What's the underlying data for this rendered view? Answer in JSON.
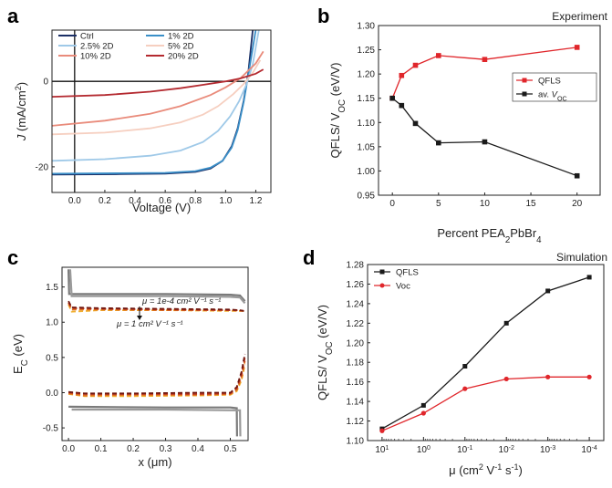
{
  "panels": {
    "a": {
      "label": "a"
    },
    "b": {
      "label": "b",
      "corner": "Experiment"
    },
    "c": {
      "label": "c",
      "annot_top": "μ = 1e-4 cm² V⁻¹ s⁻¹",
      "annot_bottom": "μ = 1 cm² V⁻¹ s⁻¹"
    },
    "d": {
      "label": "d",
      "corner": "Simulation"
    }
  },
  "chart_data": [
    {
      "panel": "a",
      "type": "line",
      "xlabel": "Voltage (V)",
      "ylabel": "J (mA/cm²)",
      "xlim": [
        -0.15,
        1.3
      ],
      "ylim": [
        -26,
        12
      ],
      "xticks": [
        "0.0",
        "0.2",
        "0.4",
        "0.6",
        "0.8",
        "1.0",
        "1.2"
      ],
      "yticks": [
        "0",
        "-20"
      ],
      "legend_position": "top-left",
      "series": [
        {
          "name": "Ctrl",
          "color": "#1b2f66",
          "x": [
            -0.15,
            0.3,
            0.6,
            0.8,
            0.9,
            0.98,
            1.04,
            1.08,
            1.12,
            1.15,
            1.18
          ],
          "y": [
            -21.8,
            -21.7,
            -21.6,
            -21.2,
            -20.4,
            -18.6,
            -15.2,
            -11.0,
            -4.5,
            2.0,
            12.0
          ]
        },
        {
          "name": "1% 2D",
          "color": "#3a8fc8",
          "x": [
            -0.15,
            0.3,
            0.6,
            0.8,
            0.9,
            0.98,
            1.04,
            1.08,
            1.12,
            1.15,
            1.2
          ],
          "y": [
            -21.6,
            -21.5,
            -21.4,
            -21.0,
            -20.2,
            -18.6,
            -15.5,
            -11.4,
            -4.8,
            1.5,
            12.0
          ]
        },
        {
          "name": "2.5% 2D",
          "color": "#9fc9e8",
          "x": [
            -0.15,
            0.2,
            0.5,
            0.7,
            0.85,
            0.95,
            1.03,
            1.09,
            1.14,
            1.18,
            1.22
          ],
          "y": [
            -18.6,
            -18.2,
            -17.4,
            -16.2,
            -14.2,
            -11.6,
            -8.2,
            -4.6,
            -0.6,
            4.0,
            12.0
          ]
        },
        {
          "name": "5% 2D",
          "color": "#f6cfc0",
          "x": [
            -0.15,
            0.2,
            0.5,
            0.7,
            0.85,
            0.95,
            1.05,
            1.12,
            1.18,
            1.23
          ],
          "y": [
            -12.4,
            -12.0,
            -11.0,
            -9.6,
            -7.8,
            -5.8,
            -3.0,
            -0.6,
            2.0,
            5.0
          ]
        },
        {
          "name": "10% 2D",
          "color": "#e98b7b",
          "x": [
            -0.15,
            0.2,
            0.5,
            0.7,
            0.9,
            1.0,
            1.1,
            1.2,
            1.25
          ],
          "y": [
            -10.4,
            -9.2,
            -7.6,
            -5.8,
            -3.2,
            -1.4,
            0.8,
            4.2,
            7.0
          ]
        },
        {
          "name": "20% 2D",
          "color": "#b42a30",
          "x": [
            -0.15,
            0.2,
            0.5,
            0.7,
            0.85,
            1.0,
            1.1,
            1.2,
            1.25
          ],
          "y": [
            -3.6,
            -3.2,
            -2.4,
            -1.6,
            -0.8,
            0.0,
            0.7,
            1.8,
            2.8
          ]
        }
      ]
    },
    {
      "panel": "b",
      "type": "line",
      "xlabel": "Percent PEA₂PbBr₄",
      "ylabel": "QFLS/ V_OC (eV/V)",
      "xlim": [
        -1.5,
        22.5
      ],
      "ylim": [
        0.95,
        1.3
      ],
      "xticks": [
        0,
        5,
        10,
        15,
        20
      ],
      "yticks": [
        "0.95",
        "1.00",
        "1.05",
        "1.10",
        "1.15",
        "1.20",
        "1.25",
        "1.30"
      ],
      "legend_position": "right",
      "series": [
        {
          "name": "QFLS",
          "color": "#e0262b",
          "x": [
            0,
            1,
            2.5,
            5,
            10,
            20
          ],
          "y": [
            1.15,
            1.197,
            1.218,
            1.238,
            1.23,
            1.255
          ]
        },
        {
          "name": "av. V_OC",
          "color": "#1a1a1a",
          "x": [
            0,
            1,
            2.5,
            5,
            10,
            20
          ],
          "y": [
            1.15,
            1.135,
            1.098,
            1.058,
            1.06,
            0.99
          ]
        }
      ]
    },
    {
      "panel": "c",
      "type": "line",
      "xlabel": "x (μm)",
      "ylabel": "E_C (eV)",
      "xlim": [
        -0.02,
        0.555
      ],
      "ylim": [
        -0.68,
        1.78
      ],
      "xticks": [
        "0.0",
        "0.1",
        "0.2",
        "0.3",
        "0.4",
        "0.5"
      ],
      "yticks": [
        "-0.5",
        "0.0",
        "0.5",
        "1.0",
        "1.5"
      ],
      "series": [
        {
          "name": "upper band edge",
          "color": "#7a7a7a",
          "x": [
            0.0,
            0.002,
            0.01,
            0.3,
            0.5,
            0.53,
            0.545
          ],
          "y": [
            1.75,
            1.4,
            1.4,
            1.4,
            1.39,
            1.38,
            1.3
          ]
        },
        {
          "name": "upper band edge 2",
          "color": "#9a9a9a",
          "x": [
            0.005,
            0.01,
            0.3,
            0.5,
            0.53,
            0.545
          ],
          "y": [
            1.75,
            1.37,
            1.37,
            1.36,
            1.35,
            1.27
          ]
        },
        {
          "name": "lower band edge",
          "color": "#7a7a7a",
          "x": [
            0.0,
            0.3,
            0.5,
            0.52,
            0.521
          ],
          "y": [
            -0.2,
            -0.21,
            -0.21,
            -0.22,
            -0.62
          ]
        },
        {
          "name": "lower band edge 2",
          "color": "#9a9a9a",
          "x": [
            0.01,
            0.3,
            0.51,
            0.53,
            0.531
          ],
          "y": [
            -0.24,
            -0.24,
            -0.25,
            -0.25,
            -0.62
          ]
        },
        {
          "name": "E_C mu 1e-4",
          "color": "#f0b030",
          "x": [
            0.0,
            0.01,
            0.1,
            0.3,
            0.5,
            0.53,
            0.542
          ],
          "y": [
            1.25,
            1.15,
            1.17,
            1.17,
            1.16,
            1.16,
            1.16
          ]
        },
        {
          "name": "E_C mu 1e-3",
          "color": "#e07020",
          "x": [
            0.0,
            0.01,
            0.1,
            0.3,
            0.5,
            0.53,
            0.542
          ],
          "y": [
            1.27,
            1.18,
            1.18,
            1.17,
            1.17,
            1.16,
            1.16
          ]
        },
        {
          "name": "E_C mu 1e-2",
          "color": "#c03a20",
          "x": [
            0.0,
            0.01,
            0.1,
            0.3,
            0.5,
            0.53,
            0.542
          ],
          "y": [
            1.28,
            1.2,
            1.19,
            1.18,
            1.17,
            1.17,
            1.16
          ]
        },
        {
          "name": "E_C mu 1",
          "color": "#701810",
          "x": [
            0.0,
            0.01,
            0.1,
            0.3,
            0.5,
            0.53,
            0.542
          ],
          "y": [
            1.3,
            1.21,
            1.2,
            1.19,
            1.18,
            1.17,
            1.16
          ]
        },
        {
          "name": "E_V mu 1e-4",
          "color": "#f0b030",
          "x": [
            0.0,
            0.05,
            0.2,
            0.4,
            0.5,
            0.52,
            0.535,
            0.545
          ],
          "y": [
            -0.02,
            -0.05,
            -0.05,
            -0.04,
            -0.03,
            0.02,
            0.18,
            0.4
          ]
        },
        {
          "name": "E_V mu 1e-3",
          "color": "#e07020",
          "x": [
            0.0,
            0.05,
            0.2,
            0.4,
            0.5,
            0.52,
            0.535,
            0.545
          ],
          "y": [
            -0.01,
            -0.04,
            -0.03,
            -0.03,
            -0.02,
            0.04,
            0.22,
            0.45
          ]
        },
        {
          "name": "E_V mu 1e-2",
          "color": "#c03a20",
          "x": [
            0.0,
            0.05,
            0.2,
            0.4,
            0.5,
            0.52,
            0.535,
            0.545
          ],
          "y": [
            0.0,
            -0.02,
            -0.02,
            -0.02,
            -0.01,
            0.06,
            0.26,
            0.5
          ]
        },
        {
          "name": "E_V mu 1",
          "color": "#701810",
          "x": [
            0.0,
            0.05,
            0.2,
            0.4,
            0.5,
            0.52,
            0.535,
            0.545
          ],
          "y": [
            0.01,
            -0.01,
            -0.01,
            0.0,
            0.0,
            0.08,
            0.3,
            0.55
          ]
        }
      ]
    },
    {
      "panel": "d",
      "type": "line",
      "xlabel": "μ (cm² V⁻¹ s⁻¹)",
      "ylabel": "QFLS/ V_OC (eV/V)",
      "x_scale": "log, reversed",
      "x_exponents": [
        1,
        0,
        -1,
        -2,
        -3,
        -4
      ],
      "ylim": [
        1.1,
        1.28
      ],
      "yticks": [
        "1.10",
        "1.12",
        "1.14",
        "1.16",
        "1.18",
        "1.20",
        "1.22",
        "1.24",
        "1.26",
        "1.28"
      ],
      "legend_position": "top-left",
      "series": [
        {
          "name": "QFLS",
          "color": "#1a1a1a",
          "x": [
            10,
            1,
            0.1,
            0.01,
            0.001,
            0.0001
          ],
          "y": [
            1.112,
            1.136,
            1.176,
            1.22,
            1.253,
            1.267
          ]
        },
        {
          "name": "Voc",
          "color": "#e0262b",
          "x": [
            10,
            1,
            0.1,
            0.01,
            0.001,
            0.0001
          ],
          "y": [
            1.11,
            1.128,
            1.153,
            1.163,
            1.165,
            1.165
          ]
        }
      ]
    }
  ]
}
